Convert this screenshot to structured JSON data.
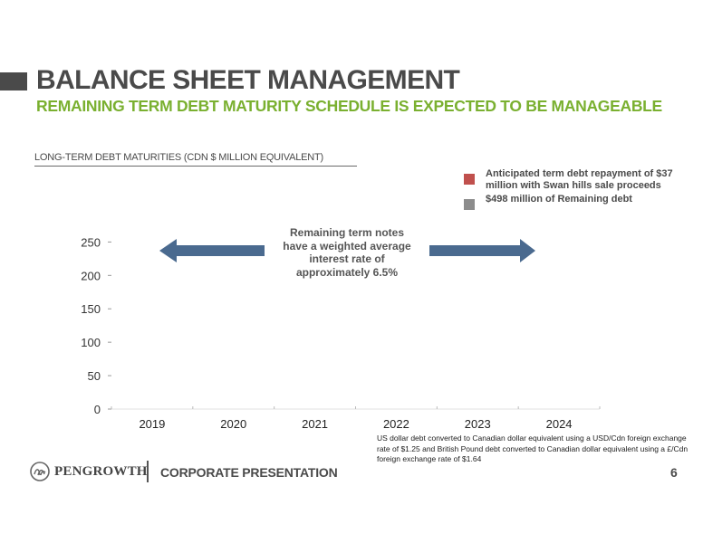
{
  "header": {
    "title": "BALANCE SHEET MANAGEMENT",
    "subtitle": "REMAINING TERM DEBT MATURITY SCHEDULE IS EXPECTED TO BE MANAGEABLE"
  },
  "chart_heading": "LONG-TERM DEBT MATURITIES (CDN $ MILLION EQUIVALENT)",
  "legend": [
    {
      "label": "Anticipated term debt repayment  of $37 million with Swan hills sale proceeds",
      "color": "#c0504d"
    },
    {
      "label": "$498 million of Remaining debt",
      "color": "#8c8c8c"
    }
  ],
  "annotation": "Remaining term notes have a weighted average interest rate of approximately 6.5%",
  "arrow_color": "#4a6a8f",
  "chart_data": {
    "type": "bar",
    "stacked": true,
    "categories": [
      "2019",
      "2020",
      "2021",
      "2022",
      "2023",
      "2024"
    ],
    "series": [
      {
        "values": [
          null,
          null,
          null,
          null,
          null,
          null
        ],
        "color": "#c0504d"
      },
      {
        "values": [
          null,
          null,
          null,
          null,
          null,
          null
        ],
        "color": "#8c8c8c"
      }
    ],
    "yticks": [
      0,
      50,
      100,
      150,
      200,
      250
    ],
    "ylim": [
      0,
      260
    ],
    "grid": false,
    "legend_position": "top-right"
  },
  "footnote": "US dollar debt converted to Canadian dollar equivalent using a USD/Cdn foreign exchange rate of $1.25 and British Pound debt converted to Canadian dollar equivalent using a £/Cdn foreign exchange rate of $1.64",
  "footer": {
    "logo_text": "PENGROWTH",
    "label": "CORPORATE PRESENTATION",
    "page_number": "6"
  }
}
